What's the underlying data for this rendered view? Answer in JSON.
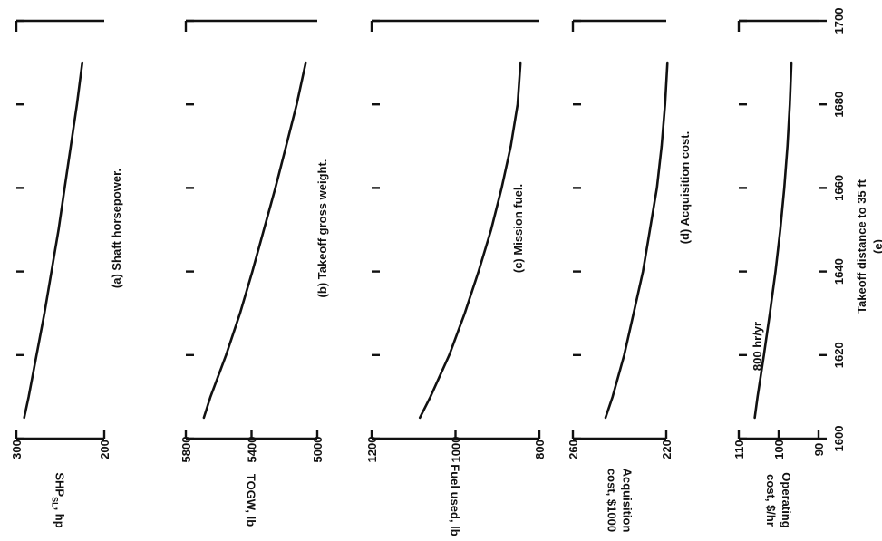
{
  "x_axis": {
    "label": "Takeoff distance to 35 ft",
    "ticks": [
      "1600",
      "1620",
      "1640",
      "1660",
      "1680",
      "1700"
    ],
    "range": [
      1600,
      1700
    ]
  },
  "figure_label": "(e)",
  "chart_data": [
    {
      "type": "line",
      "caption": "(a) Shaft horsepower.",
      "ylabel": "SHP_SL, hp",
      "ylabel_main": "SHP",
      "ylabel_sub": "SL",
      "ylabel_unit": ", hp",
      "ylim": [
        200,
        300
      ],
      "yticks": [
        "300",
        "200"
      ],
      "x": [
        1605,
        1610,
        1620,
        1630,
        1640,
        1650,
        1660,
        1670,
        1680,
        1690
      ],
      "y": [
        291,
        286,
        277,
        268,
        260,
        252,
        245,
        238,
        231,
        225
      ]
    },
    {
      "type": "line",
      "caption": "(b) Takeoff gross weight.",
      "ylabel": "TOGW, lb",
      "ylim": [
        5000,
        5800
      ],
      "yticks": [
        "5800",
        "5400",
        "5000"
      ],
      "x": [
        1605,
        1610,
        1620,
        1630,
        1640,
        1650,
        1660,
        1670,
        1680,
        1690
      ],
      "y": [
        5690,
        5650,
        5555,
        5470,
        5395,
        5325,
        5255,
        5190,
        5125,
        5070
      ]
    },
    {
      "type": "line",
      "caption": "(c) Mission fuel.",
      "ylabel": "Fuel used, lb",
      "ylim": [
        800,
        1200
      ],
      "yticks": [
        "1200",
        "1000",
        "800"
      ],
      "x": [
        1605,
        1610,
        1620,
        1630,
        1640,
        1650,
        1660,
        1670,
        1680,
        1690
      ],
      "y": [
        1085,
        1060,
        1015,
        978,
        945,
        915,
        890,
        868,
        852,
        845
      ]
    },
    {
      "type": "line",
      "caption": "(d) Acquisition cost.",
      "ylabel": "Acquisition cost, $1000",
      "ylabel_line1": "Acquisition",
      "ylabel_line2": "cost, $1000",
      "ylim": [
        220,
        260
      ],
      "yticks": [
        "260",
        "220"
      ],
      "x": [
        1605,
        1610,
        1620,
        1630,
        1640,
        1650,
        1660,
        1670,
        1680,
        1690
      ],
      "y": [
        246,
        243,
        238,
        234,
        230,
        227,
        224,
        222,
        220.5,
        219.5
      ]
    },
    {
      "type": "line",
      "caption": "",
      "annotation": "800 hr/yr",
      "ylabel": "Operating cost, $/hr",
      "ylabel_line1": "Operating",
      "ylabel_line2": "cost, $/hr",
      "ylim": [
        90,
        110
      ],
      "yticks": [
        "110",
        "100",
        "90"
      ],
      "x": [
        1605,
        1610,
        1620,
        1630,
        1640,
        1650,
        1660,
        1670,
        1680,
        1690
      ],
      "y": [
        106,
        105.3,
        103.7,
        102.2,
        100.8,
        99.6,
        98.6,
        97.8,
        97.2,
        96.8
      ]
    }
  ]
}
